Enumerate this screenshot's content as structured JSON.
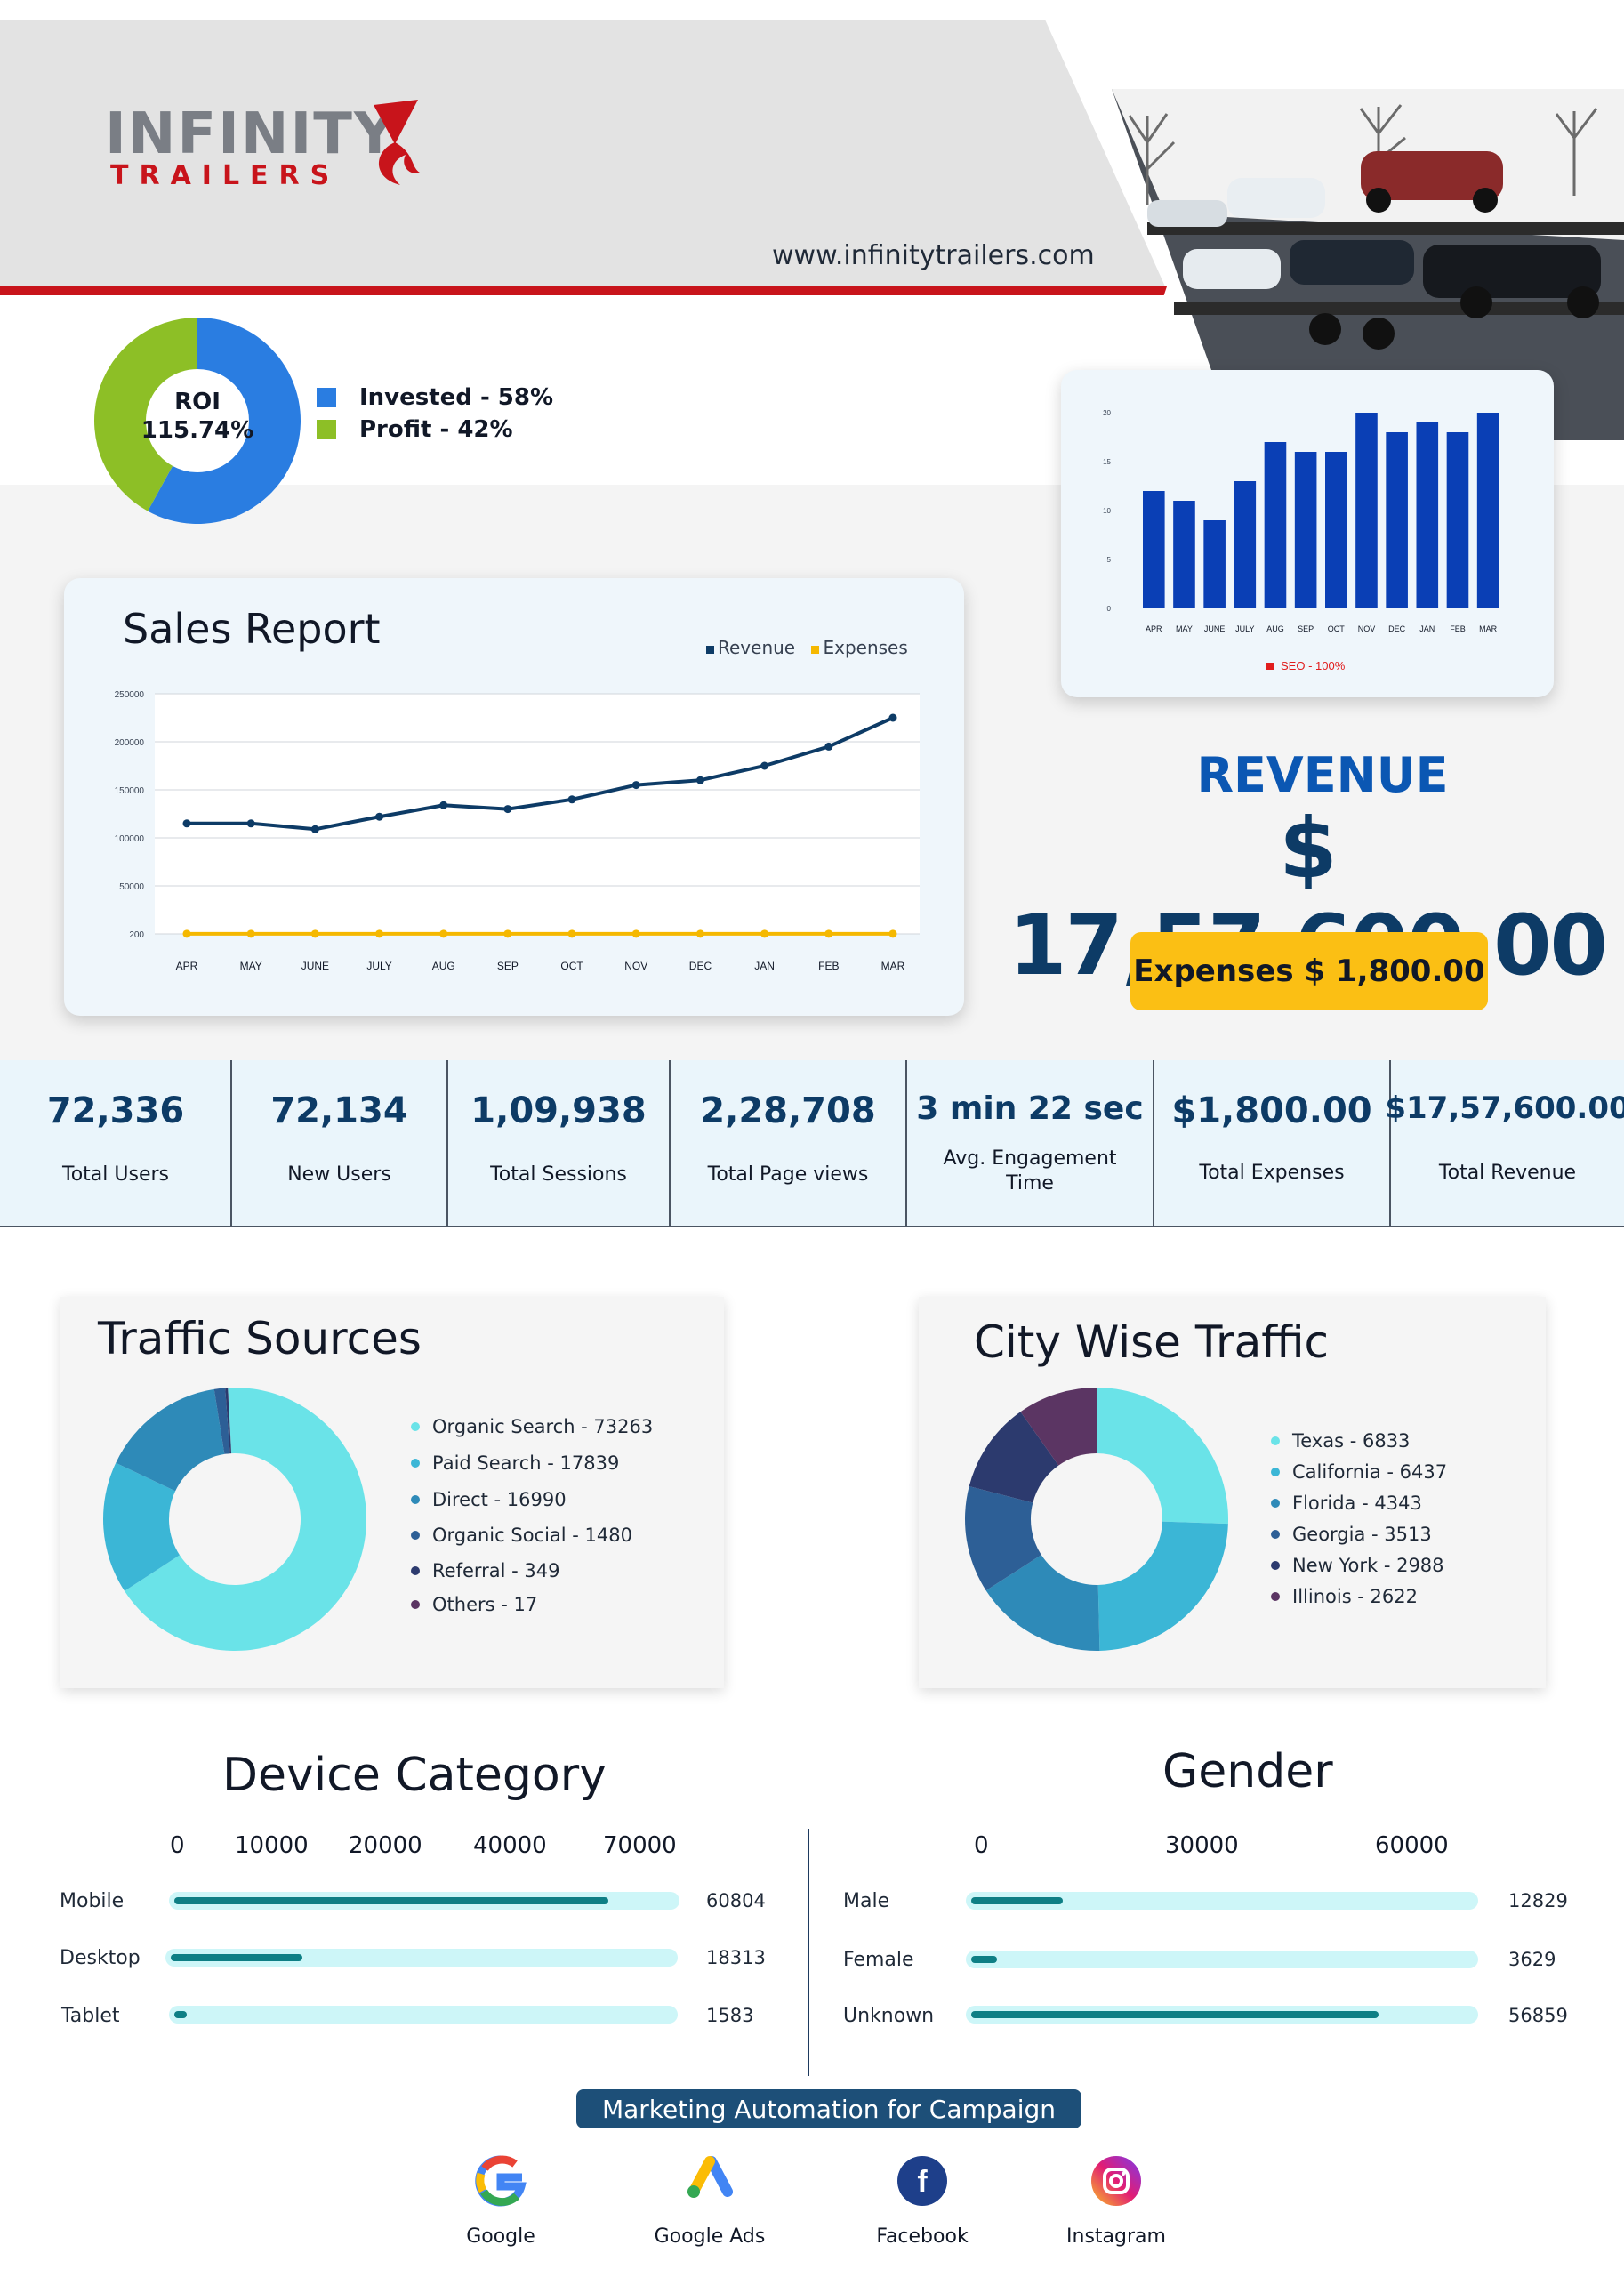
{
  "brand": {
    "logo_main": "INFINITY",
    "logo_sub": "TRAILERS",
    "website": "www.infinitytrailers.com",
    "colors": {
      "red": "#c8141b",
      "navy": "#0d3b66",
      "blue": "#0b57b3",
      "yellow": "#fbbf14"
    }
  },
  "header": {
    "photo": "car-trailer-photo"
  },
  "roi": {
    "center_label": "ROI",
    "center_value": "115.74%",
    "legend": [
      {
        "label": "Invested - 58%",
        "color": "#2a7de1"
      },
      {
        "label": "Profit - 42%",
        "color": "#8dbf26"
      }
    ]
  },
  "summary": {
    "revenue_label": "REVENUE",
    "revenue_value": "$ 17,57,600.00",
    "expenses_label": "Expenses $ 1,800.00"
  },
  "kpis": [
    {
      "value": "72,336",
      "label": "Total Users"
    },
    {
      "value": "72,134",
      "label": "New Users"
    },
    {
      "value": "1,09,938",
      "label": "Total Sessions"
    },
    {
      "value": "2,28,708",
      "label": "Total Page views"
    },
    {
      "value": "3 min 22 sec",
      "label": "Avg. Engagement Time"
    },
    {
      "value": "$1,800.00",
      "label": "Total Expenses"
    },
    {
      "value": "$17,57,600.00",
      "label": "Total Revenue"
    }
  ],
  "sections": {
    "traffic_title": "Traffic Sources",
    "city_title": "City Wise Traffic",
    "device_title": "Device Category",
    "gender_title": "Gender"
  },
  "marketing": {
    "title": "Marketing Automation for Campaign",
    "items": [
      {
        "label": "Google",
        "icon": "google-icon"
      },
      {
        "label": "Google Ads",
        "icon": "google-ads-icon"
      },
      {
        "label": "Facebook",
        "icon": "facebook-icon"
      },
      {
        "label": "Instagram",
        "icon": "instagram-icon"
      }
    ]
  },
  "chart_data": [
    {
      "id": "roi",
      "type": "pie",
      "categories": [
        "Invested",
        "Profit"
      ],
      "values": [
        58,
        42
      ],
      "colors": [
        "#2a7de1",
        "#8dbf26"
      ],
      "donut": true
    },
    {
      "id": "sales",
      "type": "line",
      "title": "Sales Report",
      "categories": [
        "APR",
        "MAY",
        "JUNE",
        "JULY",
        "AUG",
        "SEP",
        "OCT",
        "NOV",
        "DEC",
        "JAN",
        "FEB",
        "MAR"
      ],
      "yticks": [
        "250000",
        "200000",
        "150000",
        "100000",
        "50000",
        "200"
      ],
      "ylim": [
        0,
        250000
      ],
      "grid": true,
      "legend": "top-right",
      "series": [
        {
          "name": "Revenue",
          "color": "#0d3b66",
          "values": [
            115000,
            115000,
            109000,
            122000,
            134000,
            130000,
            140000,
            155000,
            160000,
            175000,
            195000,
            225000
          ]
        },
        {
          "name": "Expenses",
          "color": "#f5b800",
          "values": [
            150,
            150,
            150,
            150,
            150,
            150,
            150,
            150,
            150,
            150,
            150,
            150
          ]
        }
      ]
    },
    {
      "id": "seo",
      "type": "bar",
      "categories": [
        "APR",
        "MAY",
        "JUNE",
        "JULY",
        "AUG",
        "SEP",
        "OCT",
        "NOV",
        "DEC",
        "JAN",
        "FEB",
        "MAR"
      ],
      "values": [
        12,
        11,
        9,
        13,
        17,
        16,
        16,
        20,
        18,
        19,
        18,
        20
      ],
      "yticks": [
        "20",
        "15",
        "10",
        "5",
        "0"
      ],
      "ylim": [
        0,
        20
      ],
      "legend": "SEO - 100%",
      "color": "#0a3fb5",
      "legend_color": "#e11d1d"
    },
    {
      "id": "traffic_sources",
      "type": "pie",
      "donut": true,
      "categories": [
        "Organic Search",
        "Paid Search",
        "Direct",
        "Organic Social",
        "Referral",
        "Others"
      ],
      "values": [
        73263,
        17839,
        16990,
        1480,
        349,
        17
      ],
      "colors": [
        "#6ae3e8",
        "#3bb6d6",
        "#2e8ab8",
        "#2d5f96",
        "#2c3a6e",
        "#5b3563"
      ],
      "legend": [
        "Organic Search - 73263",
        "Paid Search - 17839",
        "Direct - 16990",
        "Organic Social - 1480",
        "Referral - 349",
        "Others - 17"
      ]
    },
    {
      "id": "city_traffic",
      "type": "pie",
      "donut": true,
      "categories": [
        "Texas",
        "California",
        "Florida",
        "Georgia",
        "New York",
        "Illinois"
      ],
      "values": [
        6833,
        6437,
        4343,
        3513,
        2988,
        2622
      ],
      "colors": [
        "#6ae3e8",
        "#3bb6d6",
        "#2e8ab8",
        "#2d5f96",
        "#2c3a6e",
        "#5b3563"
      ],
      "legend": [
        "Texas - 6833",
        "California - 6437",
        "Florida - 4343",
        "Georgia - 3513",
        "New York - 2988",
        "Illinois - 2622"
      ]
    },
    {
      "id": "device_category",
      "type": "bar",
      "orientation": "horizontal",
      "categories": [
        "Mobile",
        "Desktop",
        "Tablet"
      ],
      "values": [
        60804,
        18313,
        1583
      ],
      "value_labels": [
        "60804",
        "18313",
        "1583"
      ],
      "xticks": [
        "0",
        "10000",
        "20000",
        "40000",
        "70000"
      ],
      "xlim": [
        0,
        70000
      ]
    },
    {
      "id": "gender",
      "type": "bar",
      "orientation": "horizontal",
      "categories": [
        "Male",
        "Female",
        "Unknown"
      ],
      "values": [
        12829,
        3629,
        56859
      ],
      "value_labels": [
        "12829",
        "3629",
        "56859"
      ],
      "xticks": [
        "0",
        "30000",
        "60000"
      ],
      "xlim": [
        0,
        70000
      ]
    }
  ]
}
